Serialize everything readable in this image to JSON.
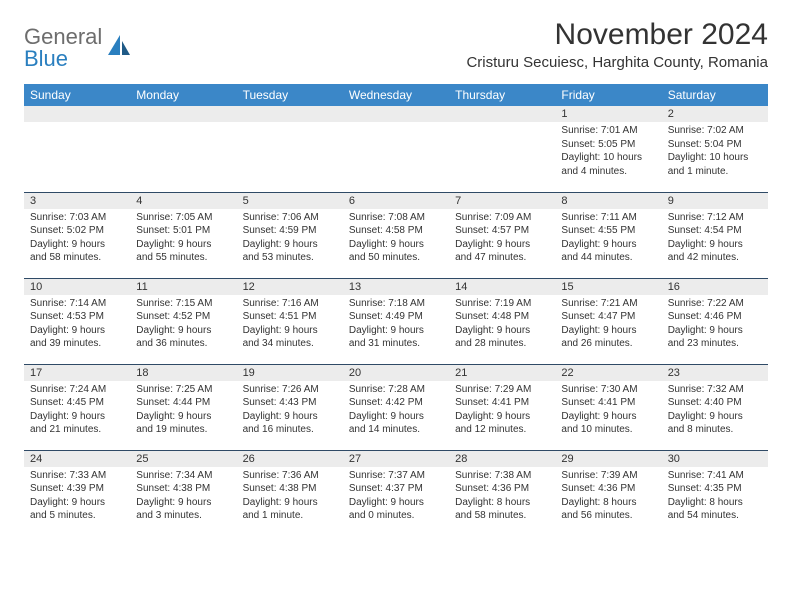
{
  "brand": {
    "word1": "General",
    "word2": "Blue"
  },
  "title": "November 2024",
  "location": "Cristuru Secuiesc, Harghita County, Romania",
  "colors": {
    "header_bg": "#3b87c8",
    "header_text": "#ffffff",
    "daynum_bg": "#ececec",
    "border": "#2f4a66",
    "text": "#333333",
    "logo_gray": "#6d6d6d",
    "logo_blue": "#2a7fbf"
  },
  "weekdays": [
    "Sunday",
    "Monday",
    "Tuesday",
    "Wednesday",
    "Thursday",
    "Friday",
    "Saturday"
  ],
  "weeks": [
    [
      {
        "day": "",
        "lines": []
      },
      {
        "day": "",
        "lines": []
      },
      {
        "day": "",
        "lines": []
      },
      {
        "day": "",
        "lines": []
      },
      {
        "day": "",
        "lines": []
      },
      {
        "day": "1",
        "lines": [
          "Sunrise: 7:01 AM",
          "Sunset: 5:05 PM",
          "Daylight: 10 hours and 4 minutes."
        ]
      },
      {
        "day": "2",
        "lines": [
          "Sunrise: 7:02 AM",
          "Sunset: 5:04 PM",
          "Daylight: 10 hours and 1 minute."
        ]
      }
    ],
    [
      {
        "day": "3",
        "lines": [
          "Sunrise: 7:03 AM",
          "Sunset: 5:02 PM",
          "Daylight: 9 hours and 58 minutes."
        ]
      },
      {
        "day": "4",
        "lines": [
          "Sunrise: 7:05 AM",
          "Sunset: 5:01 PM",
          "Daylight: 9 hours and 55 minutes."
        ]
      },
      {
        "day": "5",
        "lines": [
          "Sunrise: 7:06 AM",
          "Sunset: 4:59 PM",
          "Daylight: 9 hours and 53 minutes."
        ]
      },
      {
        "day": "6",
        "lines": [
          "Sunrise: 7:08 AM",
          "Sunset: 4:58 PM",
          "Daylight: 9 hours and 50 minutes."
        ]
      },
      {
        "day": "7",
        "lines": [
          "Sunrise: 7:09 AM",
          "Sunset: 4:57 PM",
          "Daylight: 9 hours and 47 minutes."
        ]
      },
      {
        "day": "8",
        "lines": [
          "Sunrise: 7:11 AM",
          "Sunset: 4:55 PM",
          "Daylight: 9 hours and 44 minutes."
        ]
      },
      {
        "day": "9",
        "lines": [
          "Sunrise: 7:12 AM",
          "Sunset: 4:54 PM",
          "Daylight: 9 hours and 42 minutes."
        ]
      }
    ],
    [
      {
        "day": "10",
        "lines": [
          "Sunrise: 7:14 AM",
          "Sunset: 4:53 PM",
          "Daylight: 9 hours and 39 minutes."
        ]
      },
      {
        "day": "11",
        "lines": [
          "Sunrise: 7:15 AM",
          "Sunset: 4:52 PM",
          "Daylight: 9 hours and 36 minutes."
        ]
      },
      {
        "day": "12",
        "lines": [
          "Sunrise: 7:16 AM",
          "Sunset: 4:51 PM",
          "Daylight: 9 hours and 34 minutes."
        ]
      },
      {
        "day": "13",
        "lines": [
          "Sunrise: 7:18 AM",
          "Sunset: 4:49 PM",
          "Daylight: 9 hours and 31 minutes."
        ]
      },
      {
        "day": "14",
        "lines": [
          "Sunrise: 7:19 AM",
          "Sunset: 4:48 PM",
          "Daylight: 9 hours and 28 minutes."
        ]
      },
      {
        "day": "15",
        "lines": [
          "Sunrise: 7:21 AM",
          "Sunset: 4:47 PM",
          "Daylight: 9 hours and 26 minutes."
        ]
      },
      {
        "day": "16",
        "lines": [
          "Sunrise: 7:22 AM",
          "Sunset: 4:46 PM",
          "Daylight: 9 hours and 23 minutes."
        ]
      }
    ],
    [
      {
        "day": "17",
        "lines": [
          "Sunrise: 7:24 AM",
          "Sunset: 4:45 PM",
          "Daylight: 9 hours and 21 minutes."
        ]
      },
      {
        "day": "18",
        "lines": [
          "Sunrise: 7:25 AM",
          "Sunset: 4:44 PM",
          "Daylight: 9 hours and 19 minutes."
        ]
      },
      {
        "day": "19",
        "lines": [
          "Sunrise: 7:26 AM",
          "Sunset: 4:43 PM",
          "Daylight: 9 hours and 16 minutes."
        ]
      },
      {
        "day": "20",
        "lines": [
          "Sunrise: 7:28 AM",
          "Sunset: 4:42 PM",
          "Daylight: 9 hours and 14 minutes."
        ]
      },
      {
        "day": "21",
        "lines": [
          "Sunrise: 7:29 AM",
          "Sunset: 4:41 PM",
          "Daylight: 9 hours and 12 minutes."
        ]
      },
      {
        "day": "22",
        "lines": [
          "Sunrise: 7:30 AM",
          "Sunset: 4:41 PM",
          "Daylight: 9 hours and 10 minutes."
        ]
      },
      {
        "day": "23",
        "lines": [
          "Sunrise: 7:32 AM",
          "Sunset: 4:40 PM",
          "Daylight: 9 hours and 8 minutes."
        ]
      }
    ],
    [
      {
        "day": "24",
        "lines": [
          "Sunrise: 7:33 AM",
          "Sunset: 4:39 PM",
          "Daylight: 9 hours and 5 minutes."
        ]
      },
      {
        "day": "25",
        "lines": [
          "Sunrise: 7:34 AM",
          "Sunset: 4:38 PM",
          "Daylight: 9 hours and 3 minutes."
        ]
      },
      {
        "day": "26",
        "lines": [
          "Sunrise: 7:36 AM",
          "Sunset: 4:38 PM",
          "Daylight: 9 hours and 1 minute."
        ]
      },
      {
        "day": "27",
        "lines": [
          "Sunrise: 7:37 AM",
          "Sunset: 4:37 PM",
          "Daylight: 9 hours and 0 minutes."
        ]
      },
      {
        "day": "28",
        "lines": [
          "Sunrise: 7:38 AM",
          "Sunset: 4:36 PM",
          "Daylight: 8 hours and 58 minutes."
        ]
      },
      {
        "day": "29",
        "lines": [
          "Sunrise: 7:39 AM",
          "Sunset: 4:36 PM",
          "Daylight: 8 hours and 56 minutes."
        ]
      },
      {
        "day": "30",
        "lines": [
          "Sunrise: 7:41 AM",
          "Sunset: 4:35 PM",
          "Daylight: 8 hours and 54 minutes."
        ]
      }
    ]
  ]
}
